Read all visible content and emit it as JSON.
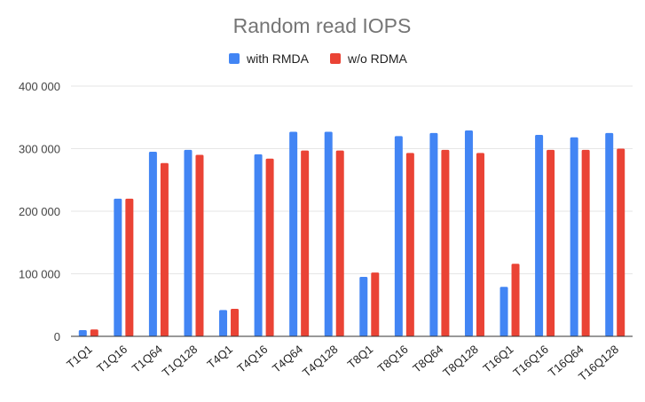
{
  "chart_data": {
    "type": "bar",
    "title": "Random read IOPS",
    "xlabel": "",
    "ylabel": "",
    "categories": [
      "T1Q1",
      "T1Q16",
      "T1Q64",
      "T1Q128",
      "T4Q1",
      "T4Q16",
      "T4Q64",
      "T4Q128",
      "T8Q1",
      "T8Q16",
      "T8Q64",
      "T8Q128",
      "T16Q1",
      "T16Q16",
      "T16Q64",
      "T16Q128"
    ],
    "series": [
      {
        "name": "with RMDA",
        "color": "#4285f4",
        "values": [
          10000,
          220000,
          295000,
          298000,
          42000,
          291000,
          327000,
          327000,
          95000,
          320000,
          325000,
          329000,
          79000,
          322000,
          318000,
          325000
        ]
      },
      {
        "name": "w/o RDMA",
        "color": "#ea4335",
        "values": [
          11000,
          220000,
          277000,
          290000,
          44000,
          284000,
          297000,
          297000,
          102000,
          293000,
          298000,
          293000,
          116000,
          298000,
          298000,
          300000
        ]
      }
    ],
    "ylim": [
      0,
      400000
    ],
    "yticks": [
      0,
      100000,
      200000,
      300000,
      400000
    ],
    "ytick_labels": [
      "0",
      "100 000",
      "200 000",
      "300 000",
      "400 000"
    ],
    "grid": true,
    "legend_position": "top-center"
  }
}
